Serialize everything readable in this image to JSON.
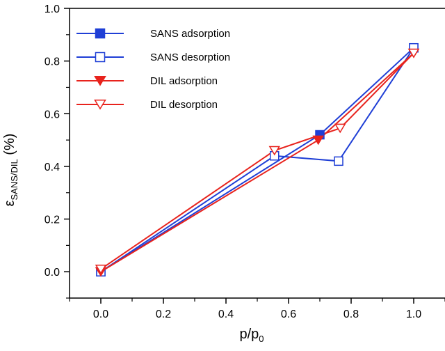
{
  "chart_data": {
    "type": "line",
    "title": "",
    "xlabel": {
      "main": "p/p",
      "sub": "0"
    },
    "ylabel": {
      "main": "ε",
      "sub": "SANS/DIL",
      "suffix": " (%)"
    },
    "xlim": [
      -0.1,
      1.1
    ],
    "ylim": [
      -0.1,
      1.0
    ],
    "xticks": [
      0.0,
      0.2,
      0.4,
      0.6,
      0.8,
      1.0
    ],
    "xtick_labels": [
      "0.0",
      "0.2",
      "0.4",
      "0.6",
      "0.8",
      "1.0"
    ],
    "yticks": [
      0.0,
      0.2,
      0.4,
      0.6,
      0.8,
      1.0
    ],
    "ytick_labels": [
      "0.0",
      "0.2",
      "0.4",
      "0.6",
      "0.8",
      "1.0"
    ],
    "grid": false,
    "legend_position": "top-left",
    "series": [
      {
        "name": "SANS adsorption",
        "color": "#1f3fd6",
        "marker": "square",
        "filled": true,
        "x": [
          0.0,
          0.7,
          1.0
        ],
        "y": [
          0.0,
          0.52,
          0.85
        ]
      },
      {
        "name": "SANS desorption",
        "color": "#1f3fd6",
        "marker": "square",
        "filled": false,
        "x": [
          0.0,
          0.555,
          0.76,
          1.0
        ],
        "y": [
          0.0,
          0.44,
          0.42,
          0.85
        ]
      },
      {
        "name": "DIL adsorption",
        "color": "#e8231d",
        "marker": "triangle-down",
        "filled": true,
        "x": [
          0.0,
          0.695,
          1.0
        ],
        "y": [
          0.0,
          0.5,
          0.83
        ]
      },
      {
        "name": "DIL desorption",
        "color": "#e8231d",
        "marker": "triangle-down",
        "filled": false,
        "x": [
          0.0,
          0.555,
          0.765,
          1.0
        ],
        "y": [
          0.01,
          0.46,
          0.545,
          0.83
        ]
      }
    ]
  }
}
